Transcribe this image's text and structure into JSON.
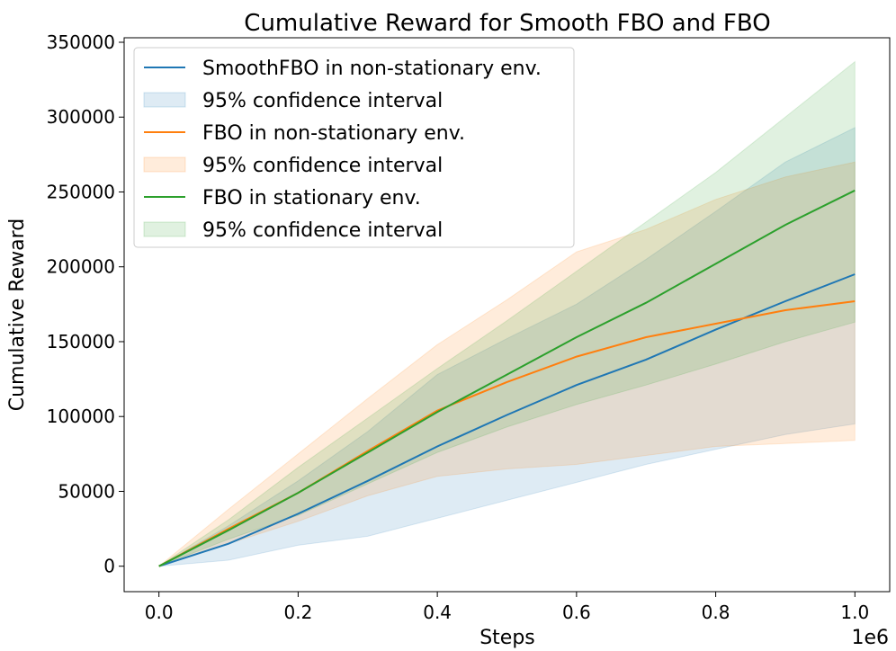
{
  "chart_data": {
    "type": "line",
    "title": "Cumulative Reward for Smooth FBO and FBO",
    "xlabel": "Steps",
    "ylabel": "Cumulative Reward",
    "x_offset_label": "1e6",
    "xlim": [
      -0.05,
      1.05
    ],
    "ylim": [
      -17000,
      353000
    ],
    "x_ticks": [
      0.0,
      0.2,
      0.4,
      0.6,
      0.8,
      1.0
    ],
    "x_tick_labels": [
      "0.0",
      "0.2",
      "0.4",
      "0.6",
      "0.8",
      "1.0"
    ],
    "y_ticks": [
      0,
      50000,
      100000,
      150000,
      200000,
      250000,
      300000,
      350000
    ],
    "y_tick_labels": [
      "0",
      "50000",
      "100000",
      "150000",
      "200000",
      "250000",
      "300000",
      "350000"
    ],
    "legend_position": "top-left",
    "x": [
      0.0,
      0.1,
      0.2,
      0.3,
      0.4,
      0.5,
      0.6,
      0.7,
      0.8,
      0.9,
      1.0
    ],
    "series": [
      {
        "name": "SmoothFBO in non-stationary env.",
        "ci_name": "95% confidence interval",
        "color": "#1f77b4",
        "values": [
          0,
          15000,
          35000,
          57000,
          80000,
          101000,
          121000,
          138000,
          158000,
          177000,
          195000
        ],
        "lower": [
          0,
          4000,
          14000,
          20000,
          32000,
          44000,
          56000,
          68000,
          78000,
          88000,
          95000
        ],
        "upper": [
          0,
          27000,
          57000,
          90000,
          128000,
          152000,
          175000,
          205000,
          237000,
          270000,
          293000
        ]
      },
      {
        "name": "FBO in non-stationary env.",
        "ci_name": "95% confidence interval",
        "color": "#ff7f0e",
        "values": [
          0,
          25000,
          49000,
          77000,
          104000,
          123000,
          140000,
          153000,
          162000,
          171000,
          177000
        ],
        "lower": [
          0,
          15000,
          30000,
          47000,
          60000,
          65000,
          68000,
          74000,
          80000,
          82000,
          84000
        ],
        "upper": [
          0,
          38000,
          75000,
          112000,
          148000,
          178000,
          210000,
          225000,
          245000,
          260000,
          270000
        ]
      },
      {
        "name": "FBO in stationary env.",
        "ci_name": "95% confidence interval",
        "color": "#2ca02c",
        "values": [
          0,
          24000,
          49000,
          76000,
          103000,
          128000,
          153000,
          176000,
          202000,
          228000,
          251000
        ],
        "lower": [
          0,
          18000,
          34000,
          55000,
          76000,
          93000,
          108000,
          121000,
          135000,
          150000,
          163000
        ],
        "upper": [
          0,
          31000,
          66000,
          99000,
          132000,
          164000,
          197000,
          230000,
          263000,
          300000,
          337000
        ]
      }
    ]
  }
}
